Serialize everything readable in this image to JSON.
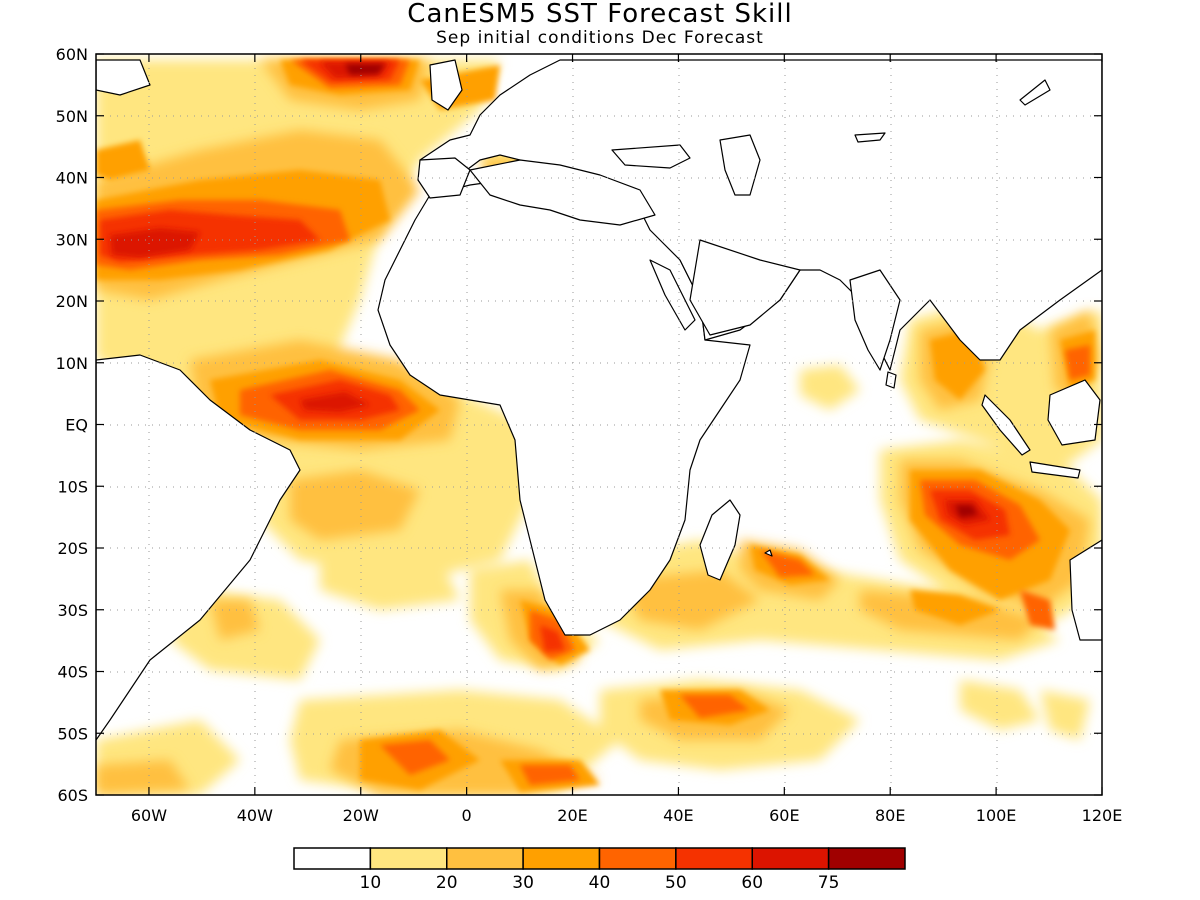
{
  "title": "CanESM5 SST Forecast Skill",
  "subtitle": "Sep initial conditions  Dec Forecast",
  "map": {
    "lon_range": [
      -70,
      120
    ],
    "lat_range": [
      -60,
      60
    ],
    "lat_ticks": [
      {
        "value": 60,
        "label": "60N"
      },
      {
        "value": 50,
        "label": "50N"
      },
      {
        "value": 40,
        "label": "40N"
      },
      {
        "value": 30,
        "label": "30N"
      },
      {
        "value": 20,
        "label": "20N"
      },
      {
        "value": 10,
        "label": "10N"
      },
      {
        "value": 0,
        "label": "EQ"
      },
      {
        "value": -10,
        "label": "10S"
      },
      {
        "value": -20,
        "label": "20S"
      },
      {
        "value": -30,
        "label": "30S"
      },
      {
        "value": -40,
        "label": "40S"
      },
      {
        "value": -50,
        "label": "50S"
      },
      {
        "value": -60,
        "label": "60S"
      }
    ],
    "lon_ticks": [
      {
        "value": -60,
        "label": "60W"
      },
      {
        "value": -40,
        "label": "40W"
      },
      {
        "value": -20,
        "label": "20W"
      },
      {
        "value": 0,
        "label": "0"
      },
      {
        "value": 20,
        "label": "20E"
      },
      {
        "value": 40,
        "label": "40E"
      },
      {
        "value": 60,
        "label": "60E"
      },
      {
        "value": 80,
        "label": "80E"
      },
      {
        "value": 100,
        "label": "100E"
      },
      {
        "value": 120,
        "label": "120E"
      }
    ],
    "grid": "dotted"
  },
  "colorbar": {
    "colors": [
      "#ffffff",
      "#ffe680",
      "#ffc040",
      "#ffa000",
      "#ff6400",
      "#f53200",
      "#dc1400",
      "#a00000"
    ],
    "labels": [
      "10",
      "20",
      "30",
      "40",
      "50",
      "60",
      "75"
    ]
  }
}
